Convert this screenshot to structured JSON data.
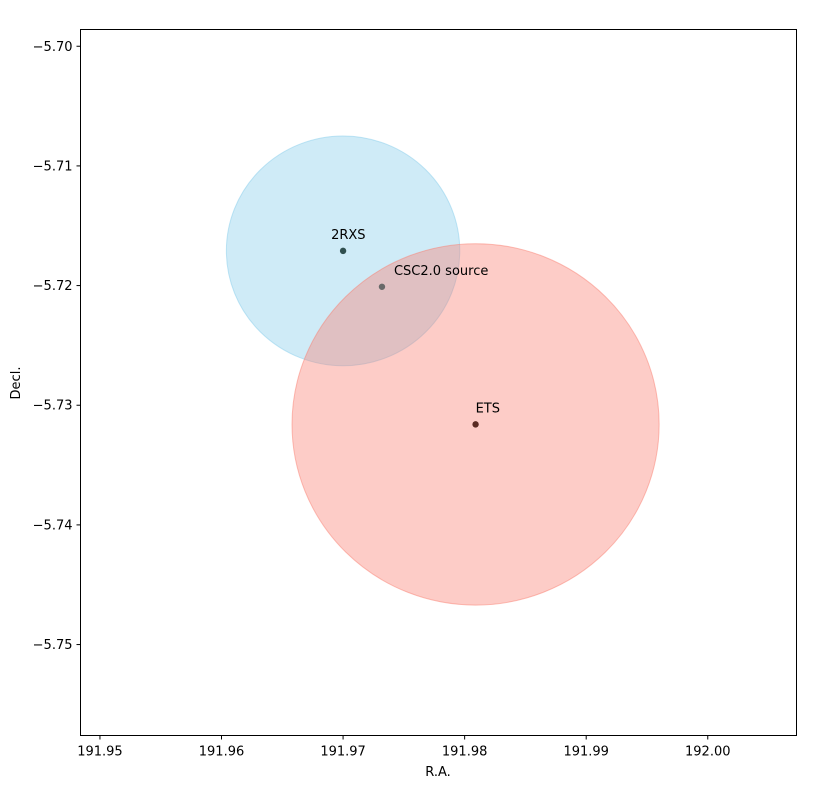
{
  "chart_data": {
    "type": "scatter",
    "title": "",
    "xlabel": "R.A.",
    "ylabel": "Decl.",
    "xlim": [
      191.9484,
      192.0073
    ],
    "ylim": [
      -5.7576,
      -5.6986
    ],
    "x_ticks": [
      191.95,
      191.96,
      191.97,
      191.98,
      191.99,
      192.0
    ],
    "x_tick_labels": [
      "191.95",
      "191.96",
      "191.97",
      "191.98",
      "191.99",
      "192.00"
    ],
    "y_ticks": [
      -5.7,
      -5.71,
      -5.72,
      -5.73,
      -5.74,
      -5.75
    ],
    "y_tick_labels": [
      "−5.70",
      "−5.71",
      "−5.72",
      "−5.73",
      "−5.74",
      "−5.75"
    ],
    "grid": false,
    "circles": [
      {
        "name": "2RXS",
        "x": 191.97,
        "y": -5.7171,
        "radius": 0.0096,
        "fill": "#87ceeb",
        "opacity": 0.4
      },
      {
        "name": "ETS",
        "x": 191.9809,
        "y": -5.7316,
        "radius": 0.0151,
        "fill": "#fa8072",
        "opacity": 0.4
      }
    ],
    "points": [
      {
        "label": "2RXS",
        "x": 191.97,
        "y": -5.7171,
        "color": "#2f4f4f"
      },
      {
        "label": "CSC2.0 source",
        "x": 191.9732,
        "y": -5.7201,
        "color": "#696969"
      },
      {
        "label": "ETS",
        "x": 191.9809,
        "y": -5.7316,
        "color": "#5a2a22"
      }
    ]
  }
}
